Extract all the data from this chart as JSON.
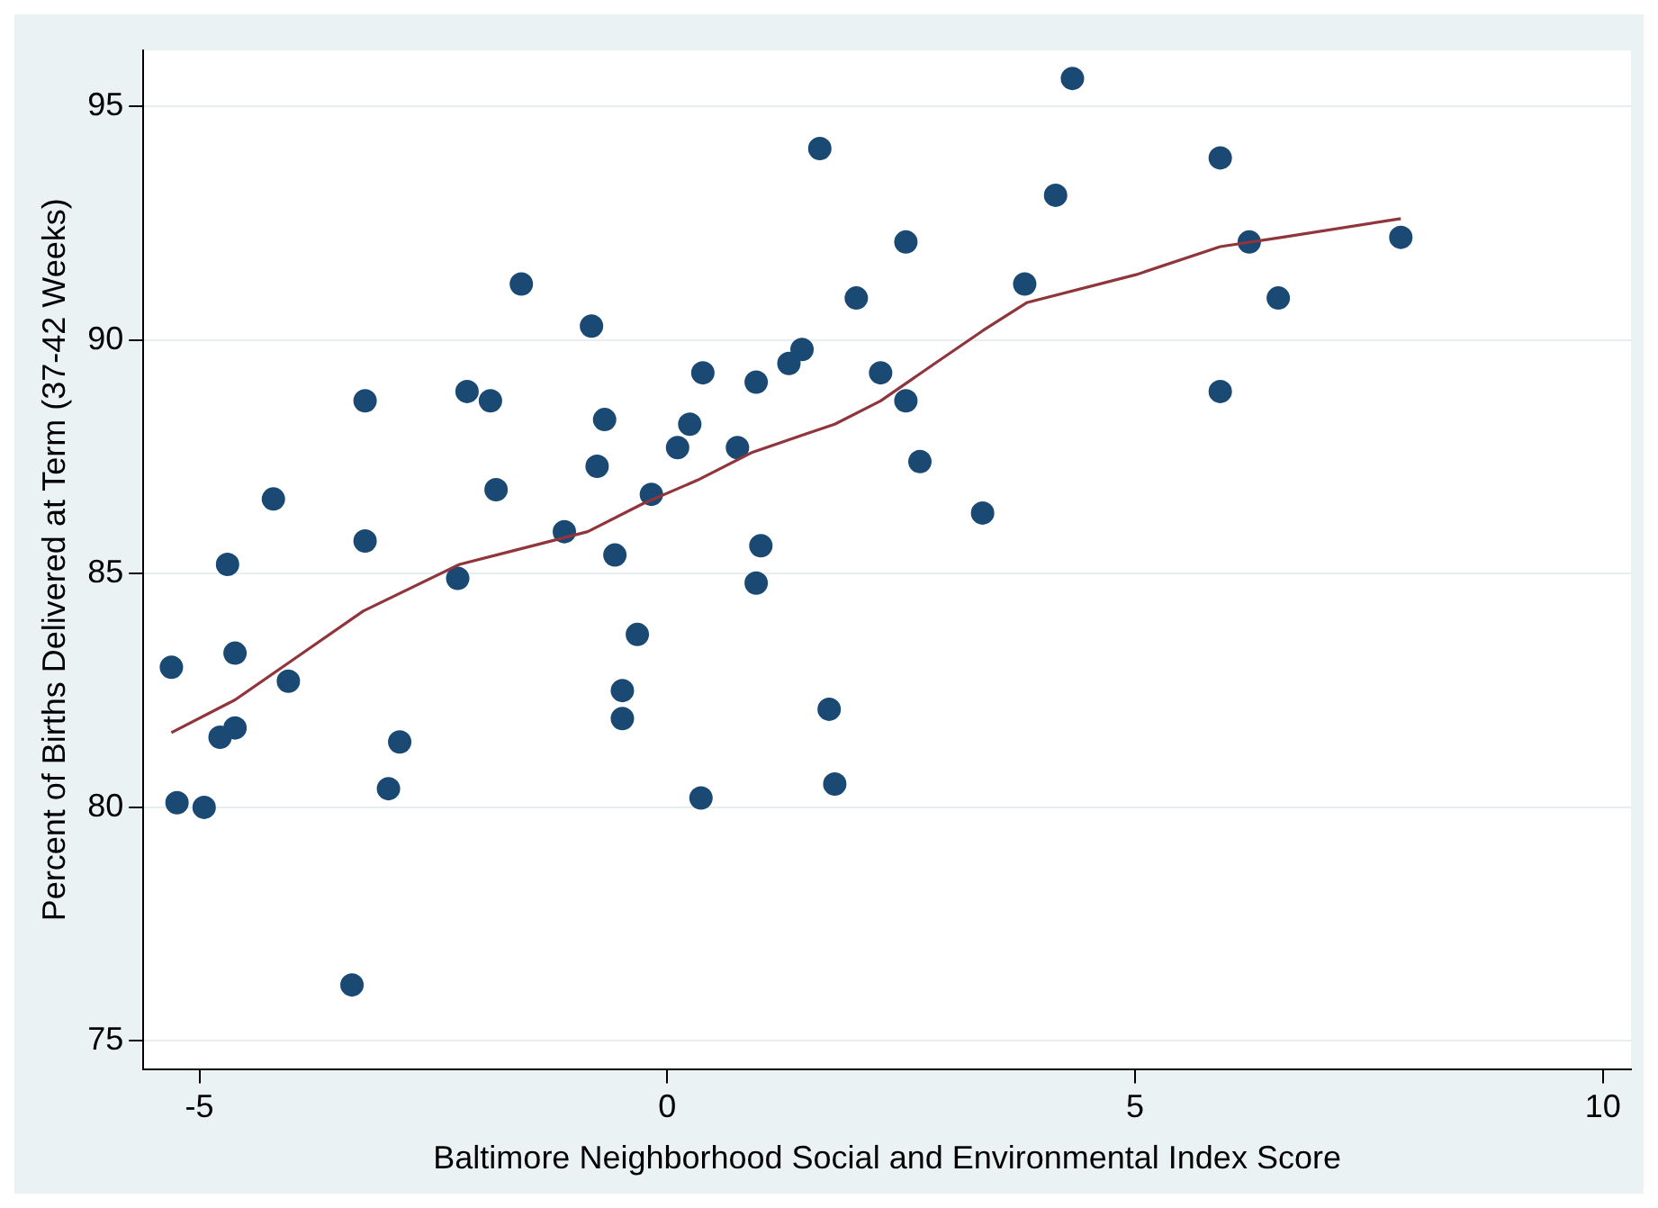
{
  "chart_data": {
    "type": "scatter",
    "xlabel": "Baltimore Neighborhood Social and Environmental Index Score",
    "ylabel": "Percent of Births Delivered at Term (37-42 Weeks)",
    "xlim": [
      -5.6,
      10.3
    ],
    "xticks": [
      -5,
      0,
      5,
      10
    ],
    "ylim": [
      74.4,
      96.2
    ],
    "yticks": [
      75,
      80,
      85,
      90,
      95
    ],
    "grid": "y",
    "legend": false,
    "series": [
      {
        "type": "scatter",
        "marker": "circle",
        "color": "#1a4a73",
        "x": [
          -5.3,
          -5.24,
          -4.95,
          -4.78,
          -4.7,
          -4.62,
          -4.62,
          -4.21,
          -4.05,
          -3.37,
          -3.23,
          -3.23,
          -2.98,
          -2.86,
          -2.24,
          -2.14,
          -1.89,
          -1.83,
          -1.56,
          -1.1,
          -0.81,
          -0.75,
          -0.67,
          -0.56,
          -0.48,
          -0.48,
          -0.32,
          -0.17,
          0.11,
          0.24,
          0.36,
          0.38,
          0.75,
          0.95,
          0.95,
          1.0,
          1.3,
          1.44,
          1.63,
          1.73,
          1.79,
          2.02,
          2.28,
          2.55,
          2.55,
          2.7,
          3.37,
          3.82,
          4.15,
          4.33,
          5.91,
          5.91,
          6.22,
          6.53,
          7.84
        ],
        "values": [
          83.0,
          80.1,
          80.0,
          81.5,
          85.2,
          83.3,
          81.7,
          86.6,
          82.7,
          76.2,
          88.7,
          85.7,
          80.4,
          81.4,
          84.9,
          88.9,
          88.7,
          86.8,
          91.2,
          85.9,
          90.3,
          87.3,
          88.3,
          85.4,
          82.5,
          81.9,
          83.7,
          86.7,
          87.7,
          88.2,
          80.2,
          89.3,
          87.7,
          84.8,
          89.1,
          85.6,
          89.5,
          89.8,
          94.1,
          82.1,
          80.5,
          90.9,
          89.3,
          92.1,
          88.7,
          87.4,
          86.3,
          91.2,
          93.1,
          95.6,
          93.9,
          88.9,
          92.1,
          90.9,
          92.2
        ]
      },
      {
        "type": "line",
        "color": "#90353b",
        "x": [
          -5.3,
          -4.62,
          -3.97,
          -3.25,
          -2.22,
          -1.63,
          -0.85,
          -0.26,
          0.32,
          0.91,
          1.49,
          1.79,
          2.28,
          2.86,
          3.37,
          3.84,
          5.01,
          5.91,
          6.57,
          7.84
        ],
        "values": [
          81.6,
          82.3,
          83.2,
          84.2,
          85.2,
          85.5,
          85.9,
          86.5,
          87.0,
          87.6,
          88.0,
          88.2,
          88.7,
          89.5,
          90.2,
          90.8,
          91.4,
          92.0,
          92.2,
          92.6
        ]
      }
    ]
  }
}
